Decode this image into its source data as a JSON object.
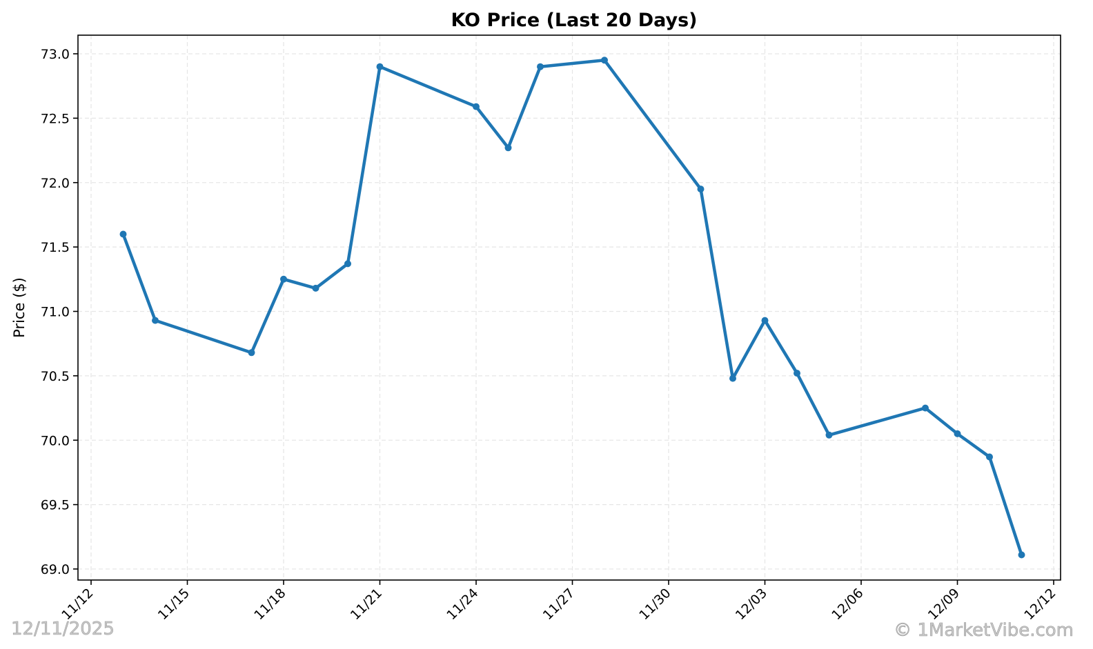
{
  "chart_data": {
    "type": "line",
    "title": "KO Price (Last 20 Days)",
    "xlabel": "",
    "ylabel": "Price ($)",
    "ylim": [
      68.94,
      73.15
    ],
    "xlim": [
      "11/11",
      "12/12"
    ],
    "grid": true,
    "legend": null,
    "series": [
      {
        "name": "KO",
        "color": "#1f77b4",
        "marker": "circle",
        "x": [
          "2025-11-13",
          "2025-11-14",
          "2025-11-17",
          "2025-11-18",
          "2025-11-19",
          "2025-11-20",
          "2025-11-21",
          "2025-11-24",
          "2025-11-25",
          "2025-11-26",
          "2025-11-28",
          "2025-12-01",
          "2025-12-02",
          "2025-12-03",
          "2025-12-04",
          "2025-12-05",
          "2025-12-08",
          "2025-12-09",
          "2025-12-10",
          "2025-12-11"
        ],
        "values": [
          71.6,
          70.93,
          70.68,
          71.25,
          71.18,
          71.37,
          72.9,
          72.59,
          72.27,
          72.9,
          72.95,
          71.95,
          70.48,
          70.93,
          70.52,
          70.04,
          70.25,
          70.05,
          69.87,
          69.11
        ]
      }
    ],
    "x_ticks": [
      "11/12",
      "11/15",
      "11/18",
      "11/21",
      "11/24",
      "11/27",
      "11/30",
      "12/03",
      "12/06",
      "12/09",
      "12/12"
    ],
    "y_ticks": [
      "69.0",
      "69.5",
      "70.0",
      "70.5",
      "71.0",
      "71.5",
      "72.0",
      "72.5",
      "73.0"
    ]
  },
  "footer": {
    "date": "12/11/2025",
    "copyright": "© 1MarketVibe.com"
  },
  "colors": {
    "line": "#1f77b4",
    "grid": "#e6e6e6",
    "axes": "#000000"
  }
}
